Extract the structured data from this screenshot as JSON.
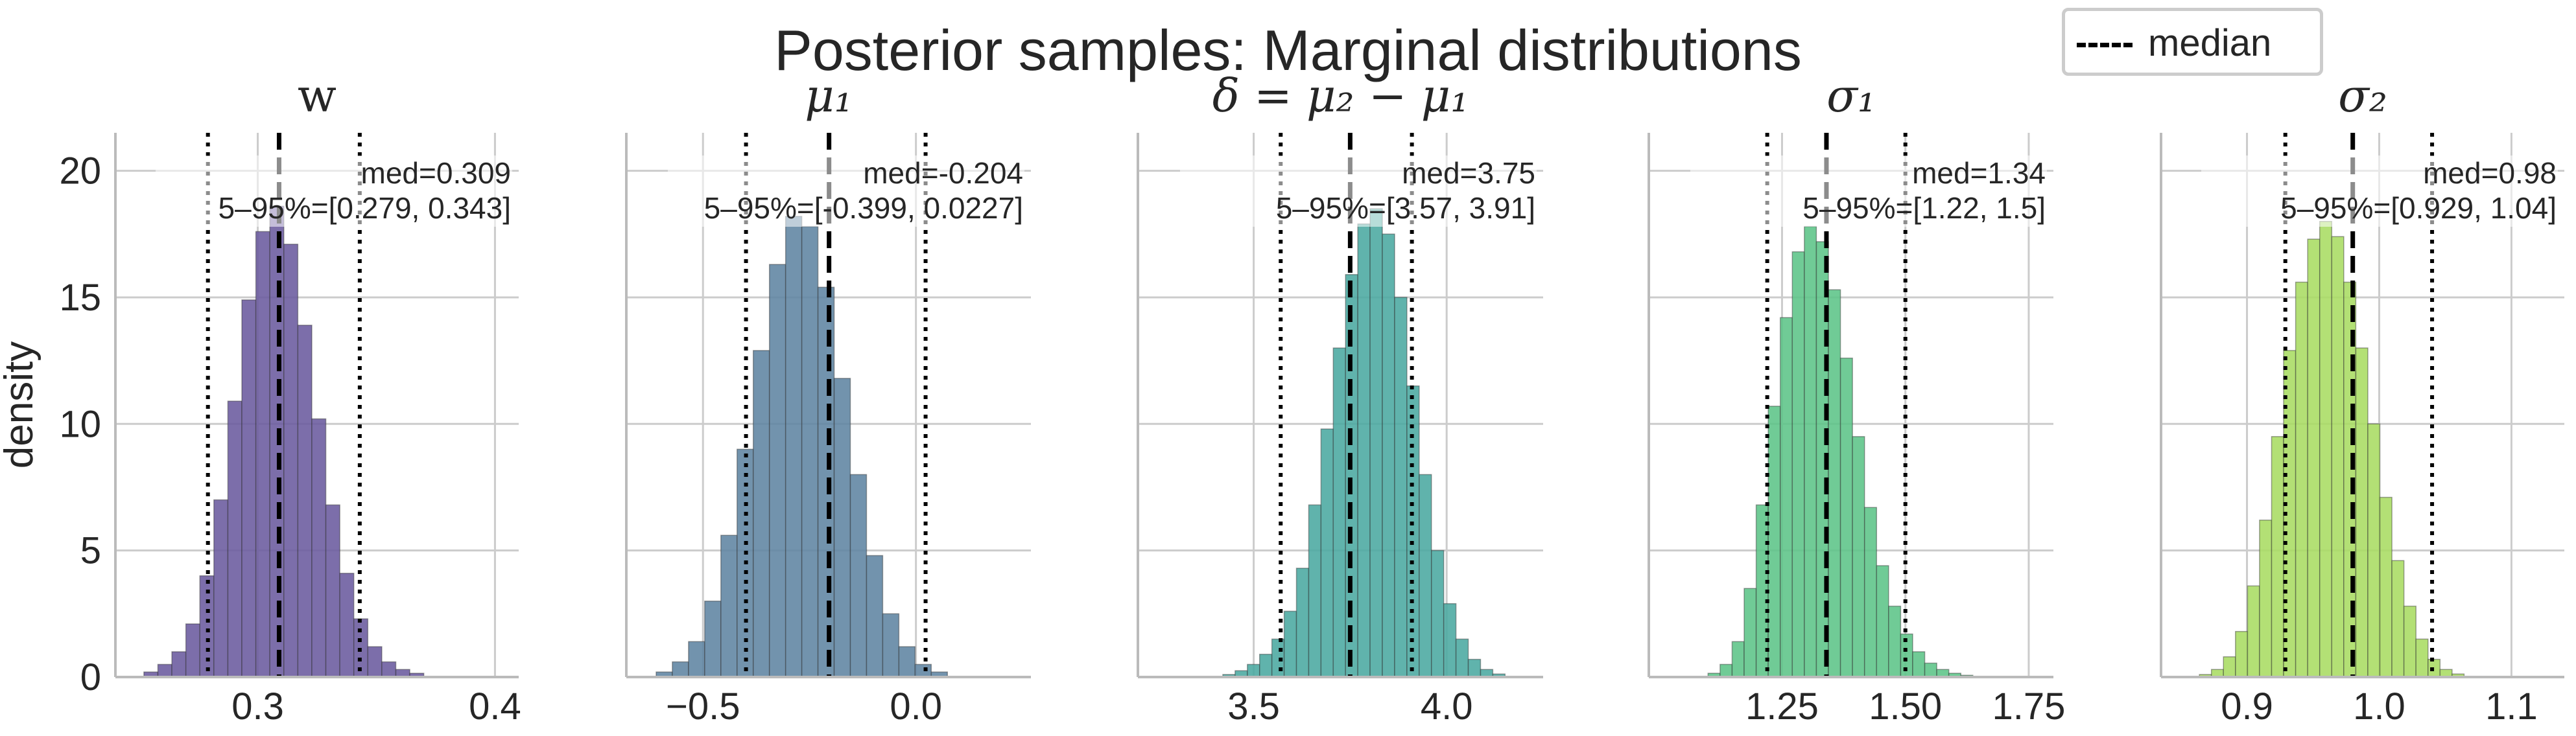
{
  "figure": {
    "title": "Posterior samples: Marginal distributions",
    "ylabel": "density",
    "legend": {
      "label": "median",
      "placement": "upper right"
    }
  },
  "colors": {
    "w": "#6a5a9e",
    "mu1": "#5f84a2",
    "delta": "#4aa9a0",
    "sigma1": "#5cc487",
    "sigma2": "#a9dc62",
    "median_line": "#000000",
    "grid": "#cccccc",
    "axis": "#bbbbbb",
    "text": "#262626"
  },
  "chart_data": [
    {
      "type": "bar",
      "title": "w",
      "ylabel": "density",
      "ylim": [
        0,
        21.5
      ],
      "xlim": [
        0.24,
        0.41
      ],
      "xticks": [
        0.3,
        0.4
      ],
      "xticklabels": [
        "0.3",
        "0.4"
      ],
      "yticks": [
        0,
        5,
        10,
        15,
        20
      ],
      "yticklabels": [
        "0",
        "5",
        "10",
        "15",
        "20"
      ],
      "median": 0.309,
      "q05": 0.279,
      "q95": 0.343,
      "annotation": {
        "median_text": "med=0.309",
        "interval_text": "5–95%=[0.279, 0.343]"
      },
      "bin_start": 0.252,
      "bin_width": 0.0059,
      "values": [
        0.2,
        0.5,
        1.0,
        2.1,
        4.0,
        7.0,
        10.9,
        14.9,
        17.6,
        18.6,
        17.1,
        13.9,
        10.2,
        6.8,
        4.1,
        2.3,
        1.2,
        0.6,
        0.3,
        0.15
      ]
    },
    {
      "type": "bar",
      "title": "μ₁",
      "ylabel": "",
      "ylim": [
        0,
        21.5
      ],
      "xlim": [
        -0.68,
        0.27
      ],
      "xticks": [
        -0.5,
        0.0
      ],
      "xticklabels": [
        "−0.5",
        "0.0"
      ],
      "yticks": [
        0,
        5,
        10,
        15,
        20
      ],
      "yticklabels": [],
      "median": -0.204,
      "q05": -0.399,
      "q095": null,
      "q95": 0.0227,
      "annotation": {
        "median_text": "med=-0.204",
        "interval_text": "5–95%=[-0.399, 0.0227]"
      },
      "bin_start": -0.61,
      "bin_width": 0.038,
      "values": [
        0.2,
        0.6,
        1.4,
        3.0,
        5.6,
        9.0,
        12.9,
        16.3,
        18.2,
        17.8,
        15.4,
        11.8,
        8.0,
        4.8,
        2.5,
        1.2,
        0.5,
        0.2
      ]
    },
    {
      "type": "bar",
      "title": "δ = μ₂ − μ₁",
      "ylabel": "",
      "ylim": [
        0,
        21.5
      ],
      "xlim": [
        3.2,
        4.25
      ],
      "xticks": [
        3.5,
        4.0
      ],
      "xticklabels": [
        "3.5",
        "4.0"
      ],
      "yticks": [
        0,
        5,
        10,
        15,
        20
      ],
      "yticklabels": [],
      "median": 3.75,
      "q05": 3.57,
      "q95": 3.91,
      "annotation": {
        "median_text": "med=3.75",
        "interval_text": "5–95%=[3.57, 3.91]"
      },
      "bin_start": 3.42,
      "bin_width": 0.0318,
      "values": [
        0.1,
        0.25,
        0.5,
        0.9,
        1.5,
        2.6,
        4.3,
        6.8,
        9.8,
        13.0,
        15.9,
        17.9,
        18.5,
        17.5,
        15.0,
        11.5,
        8.0,
        5.0,
        2.9,
        1.5,
        0.7,
        0.3,
        0.12
      ]
    },
    {
      "type": "bar",
      "title": "σ₁",
      "ylabel": "",
      "ylim": [
        0,
        21.5
      ],
      "xlim": [
        0.98,
        1.8
      ],
      "xticks": [
        1.25,
        1.5,
        1.75
      ],
      "xticklabels": [
        "1.25",
        "1.50",
        "1.75"
      ],
      "yticks": [
        0,
        5,
        10,
        15,
        20
      ],
      "yticklabels": [],
      "median": 1.34,
      "q05": 1.22,
      "q95": 1.5,
      "annotation": {
        "median_text": "med=1.34",
        "interval_text": "5–95%=[1.22, 1.5]"
      },
      "bin_start": 1.1,
      "bin_width": 0.0244,
      "values": [
        0.15,
        0.5,
        1.4,
        3.5,
        6.8,
        10.7,
        14.2,
        16.8,
        17.8,
        17.2,
        15.3,
        12.6,
        9.5,
        6.7,
        4.4,
        2.8,
        1.7,
        1.0,
        0.55,
        0.3,
        0.15,
        0.07
      ]
    },
    {
      "type": "bar",
      "title": "σ₂",
      "ylabel": "",
      "ylim": [
        0,
        21.5
      ],
      "xlim": [
        0.835,
        1.14
      ],
      "xticks": [
        0.9,
        1.0,
        1.1
      ],
      "xticklabels": [
        "0.9",
        "1.0",
        "1.1"
      ],
      "yticks": [
        0,
        5,
        10,
        15,
        20
      ],
      "yticklabels": [],
      "median": 0.98,
      "q05": 0.929,
      "q95": 1.04,
      "annotation": {
        "median_text": "med=0.98",
        "interval_text": "5–95%=[0.929, 1.04]"
      },
      "bin_start": 0.864,
      "bin_width": 0.0091,
      "values": [
        0.1,
        0.3,
        0.8,
        1.8,
        3.6,
        6.2,
        9.5,
        12.9,
        15.6,
        17.3,
        18.0,
        17.4,
        15.6,
        13.0,
        10.0,
        7.1,
        4.6,
        2.8,
        1.5,
        0.7,
        0.3,
        0.12
      ]
    }
  ]
}
